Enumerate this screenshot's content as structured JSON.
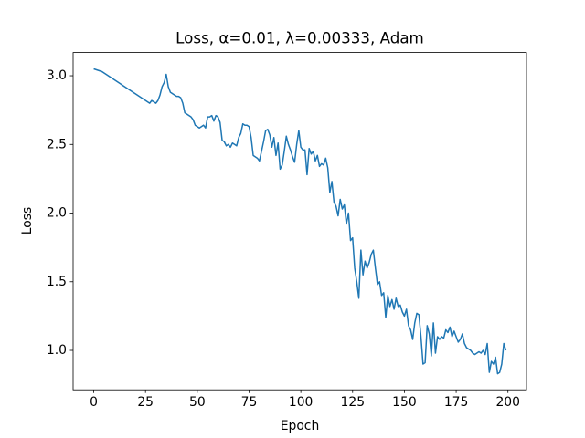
{
  "chart_data": {
    "type": "line",
    "title": "Loss, α=0.01, λ=0.00333, Adam",
    "xlabel": "Epoch",
    "ylabel": "Loss",
    "color": "#1f77b4",
    "x": [
      0,
      1,
      2,
      3,
      4,
      5,
      6,
      7,
      8,
      9,
      10,
      11,
      12,
      13,
      14,
      15,
      16,
      17,
      18,
      19,
      20,
      21,
      22,
      23,
      24,
      25,
      26,
      27,
      28,
      29,
      30,
      31,
      32,
      33,
      34,
      35,
      36,
      37,
      38,
      39,
      40,
      41,
      42,
      43,
      44,
      45,
      46,
      47,
      48,
      49,
      50,
      51,
      52,
      53,
      54,
      55,
      56,
      57,
      58,
      59,
      60,
      61,
      62,
      63,
      64,
      65,
      66,
      67,
      68,
      69,
      70,
      71,
      72,
      73,
      74,
      75,
      76,
      77,
      78,
      79,
      80,
      81,
      82,
      83,
      84,
      85,
      86,
      87,
      88,
      89,
      90,
      91,
      92,
      93,
      94,
      95,
      96,
      97,
      98,
      99,
      100,
      101,
      102,
      103,
      104,
      105,
      106,
      107,
      108,
      109,
      110,
      111,
      112,
      113,
      114,
      115,
      116,
      117,
      118,
      119,
      120,
      121,
      122,
      123,
      124,
      125,
      126,
      127,
      128,
      129,
      130,
      131,
      132,
      133,
      134,
      135,
      136,
      137,
      138,
      139,
      140,
      141,
      142,
      143,
      144,
      145,
      146,
      147,
      148,
      149,
      150,
      151,
      152,
      153,
      154,
      155,
      156,
      157,
      158,
      159,
      160,
      161,
      162,
      163,
      164,
      165,
      166,
      167,
      168,
      169,
      170,
      171,
      172,
      173,
      174,
      175,
      176,
      177,
      178,
      179,
      180,
      181,
      182,
      183,
      184,
      185,
      186,
      187,
      188,
      189,
      190,
      191,
      192,
      193,
      194,
      195,
      196,
      197,
      198,
      199
    ],
    "values": [
      3.05,
      3.045,
      3.04,
      3.035,
      3.03,
      3.02,
      3.01,
      3.0,
      2.99,
      2.98,
      2.97,
      2.96,
      2.95,
      2.94,
      2.93,
      2.92,
      2.91,
      2.9,
      2.89,
      2.88,
      2.87,
      2.86,
      2.85,
      2.84,
      2.83,
      2.82,
      2.81,
      2.8,
      2.82,
      2.81,
      2.8,
      2.82,
      2.86,
      2.92,
      2.95,
      3.01,
      2.92,
      2.88,
      2.87,
      2.86,
      2.85,
      2.85,
      2.84,
      2.8,
      2.73,
      2.72,
      2.71,
      2.7,
      2.68,
      2.64,
      2.63,
      2.62,
      2.63,
      2.64,
      2.62,
      2.7,
      2.7,
      2.71,
      2.67,
      2.71,
      2.7,
      2.66,
      2.53,
      2.52,
      2.49,
      2.5,
      2.48,
      2.51,
      2.5,
      2.49,
      2.55,
      2.58,
      2.65,
      2.64,
      2.64,
      2.63,
      2.55,
      2.42,
      2.41,
      2.4,
      2.38,
      2.45,
      2.52,
      2.6,
      2.61,
      2.57,
      2.48,
      2.55,
      2.42,
      2.51,
      2.32,
      2.35,
      2.45,
      2.56,
      2.5,
      2.46,
      2.41,
      2.37,
      2.5,
      2.6,
      2.48,
      2.46,
      2.46,
      2.28,
      2.47,
      2.43,
      2.45,
      2.38,
      2.42,
      2.34,
      2.36,
      2.35,
      2.4,
      2.33,
      2.15,
      2.23,
      2.08,
      2.05,
      1.98,
      2.1,
      2.03,
      2.06,
      1.92,
      2.0,
      1.8,
      1.82,
      1.6,
      1.5,
      1.38,
      1.73,
      1.55,
      1.65,
      1.6,
      1.64,
      1.7,
      1.73,
      1.6,
      1.48,
      1.5,
      1.4,
      1.42,
      1.24,
      1.4,
      1.32,
      1.37,
      1.3,
      1.38,
      1.32,
      1.33,
      1.28,
      1.25,
      1.3,
      1.18,
      1.15,
      1.08,
      1.2,
      1.27,
      1.26,
      1.1,
      0.9,
      0.91,
      1.18,
      1.12,
      0.96,
      1.2,
      0.98,
      1.1,
      1.08,
      1.1,
      1.09,
      1.15,
      1.13,
      1.17,
      1.1,
      1.14,
      1.1,
      1.06,
      1.08,
      1.12,
      1.05,
      1.02,
      1.01,
      1.0,
      0.98,
      0.97,
      0.98,
      0.99,
      0.98,
      1.0,
      0.97,
      1.05,
      0.84,
      0.92,
      0.9,
      0.95,
      0.83,
      0.84,
      0.9,
      1.05,
      1.0
    ],
    "xlim": [
      -9.95,
      208.95
    ],
    "ylim": [
      0.713,
      3.169
    ],
    "xticks": [
      0,
      25,
      50,
      75,
      100,
      125,
      150,
      175,
      200
    ],
    "yticks": [
      {
        "value": 1,
        "label": "1.0"
      },
      1.5,
      {
        "value": 2,
        "label": "2.0"
      },
      2.5,
      {
        "value": 3,
        "label": "3.0"
      }
    ]
  }
}
